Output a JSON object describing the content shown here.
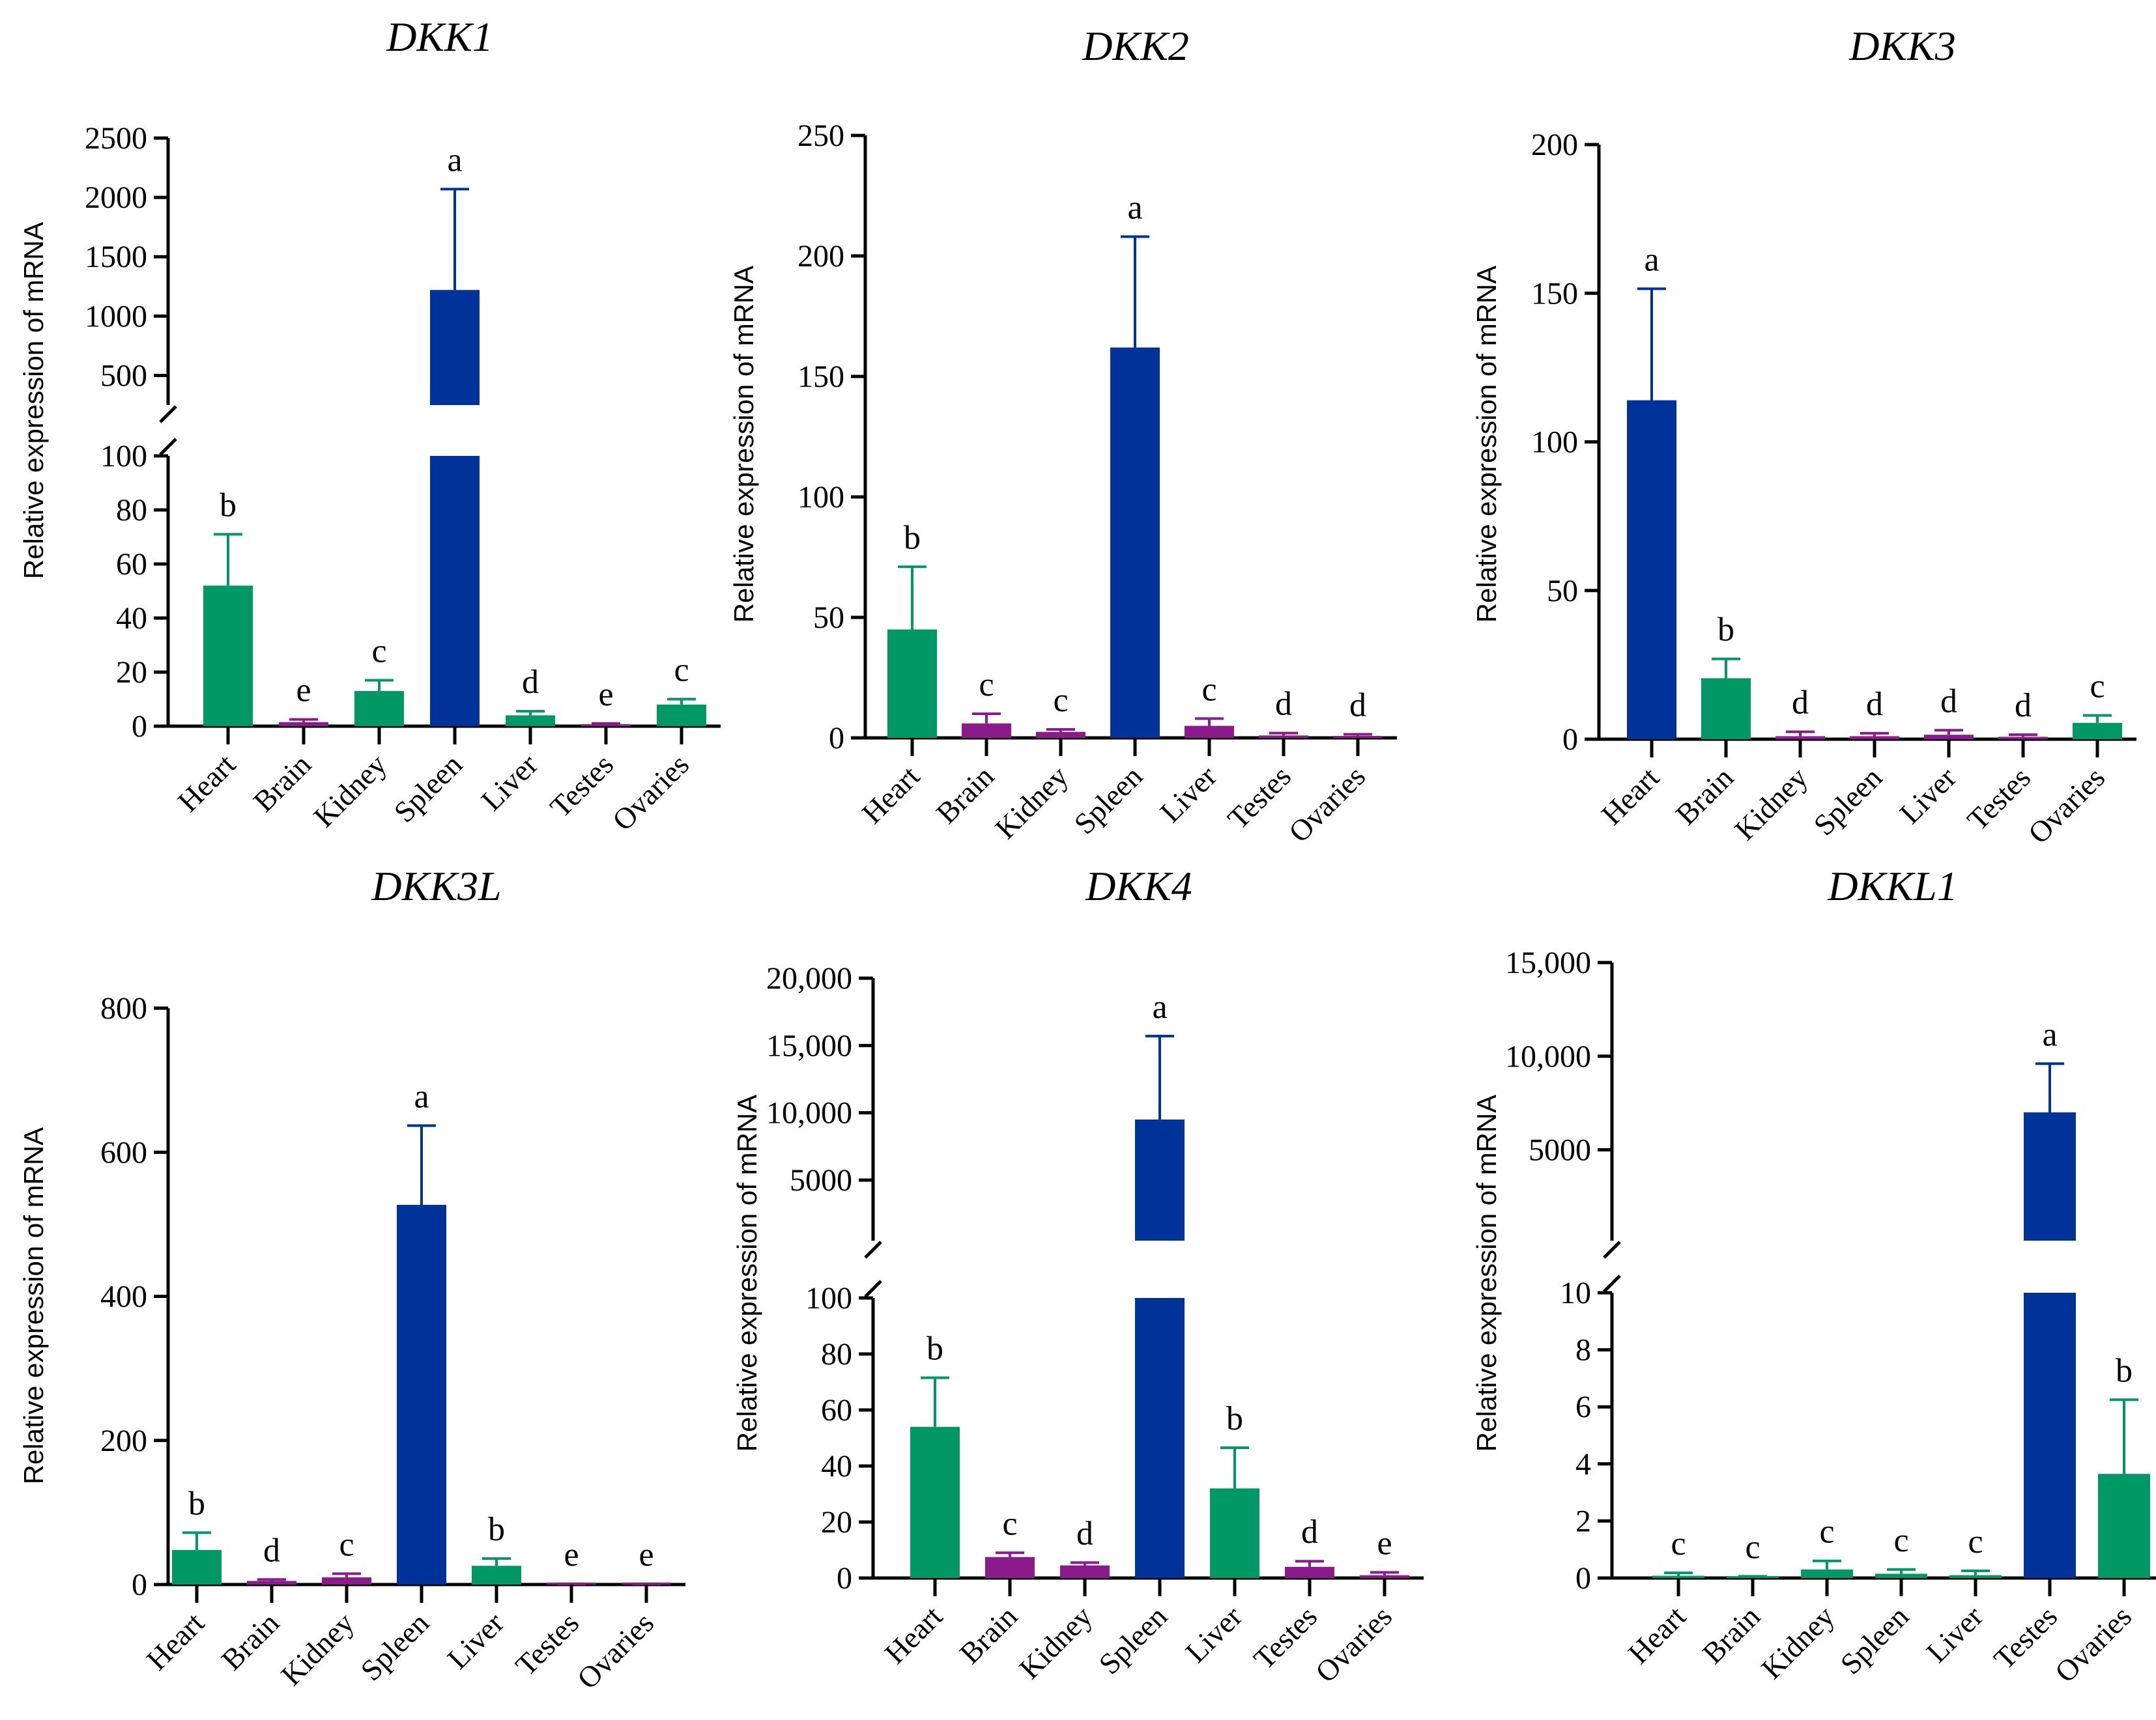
{
  "colors": {
    "blue": "#003399",
    "green": "#009966",
    "purple": "#8b1a8b",
    "axis": "#000000"
  },
  "chart_data": [
    {
      "type": "bar",
      "title": "DKK1",
      "ylabel": "Relative expression of mRNA",
      "categories": [
        "Heart",
        "Brain",
        "Kidney",
        "Spleen",
        "Liver",
        "Testes",
        "Ovaries"
      ],
      "values": [
        52,
        1.5,
        13,
        1220,
        4,
        0.5,
        8
      ],
      "errors": [
        19,
        1,
        4,
        850,
        1.5,
        0.5,
        2
      ],
      "significance": [
        "b",
        "e",
        "c",
        "a",
        "d",
        "e",
        "c"
      ],
      "colors": [
        "green",
        "purple",
        "green",
        "blue",
        "green",
        "purple",
        "green"
      ],
      "axis_break": true,
      "lower_ylim": [
        0,
        100
      ],
      "lower_ticks": [
        "0",
        "20",
        "40",
        "60",
        "80",
        "100"
      ],
      "upper_ylim": [
        250,
        2500
      ],
      "upper_ticks": [
        "500",
        "1000",
        "1500",
        "2000",
        "2500"
      ]
    },
    {
      "type": "bar",
      "title": "DKK2",
      "ylabel": "Relative expression of mRNA",
      "categories": [
        "Heart",
        "Brain",
        "Kidney",
        "Spleen",
        "Liver",
        "Testes",
        "Ovaries"
      ],
      "values": [
        45,
        6,
        2.5,
        162,
        5,
        1,
        0.5
      ],
      "errors": [
        26,
        4,
        1,
        46,
        3,
        1,
        1
      ],
      "significance": [
        "b",
        "c",
        "c",
        "a",
        "c",
        "d",
        "d"
      ],
      "colors": [
        "green",
        "purple",
        "purple",
        "blue",
        "purple",
        "purple",
        "purple"
      ],
      "axis_break": false,
      "ylim": [
        0,
        250
      ],
      "ticks": [
        "0",
        "50",
        "100",
        "150",
        "200",
        "250"
      ]
    },
    {
      "type": "bar",
      "title": "DKK3",
      "ylabel": "Relative expression of mRNA",
      "categories": [
        "Heart",
        "Brain",
        "Kidney",
        "Spleen",
        "Liver",
        "Testes",
        "Ovaries"
      ],
      "values": [
        114,
        20.5,
        1,
        1,
        1.5,
        0.8,
        5.5
      ],
      "errors": [
        37.5,
        6.5,
        1.5,
        1,
        1.5,
        0.7,
        2.5
      ],
      "significance": [
        "a",
        "b",
        "d",
        "d",
        "d",
        "d",
        "c"
      ],
      "colors": [
        "blue",
        "green",
        "purple",
        "purple",
        "purple",
        "purple",
        "green"
      ],
      "axis_break": false,
      "ylim": [
        0,
        200
      ],
      "ticks": [
        "0",
        "50",
        "100",
        "150",
        "200"
      ]
    },
    {
      "type": "bar",
      "title": "DKK3L",
      "ylabel": "Relative expression of mRNA",
      "categories": [
        "Heart",
        "Brain",
        "Kidney",
        "Spleen",
        "Liver",
        "Testes",
        "Ovaries"
      ],
      "values": [
        48,
        5,
        10,
        527,
        26,
        0.5,
        0.5
      ],
      "errors": [
        24,
        2,
        5,
        110,
        10,
        0.5,
        0.5
      ],
      "significance": [
        "b",
        "d",
        "c",
        "a",
        "b",
        "e",
        "e"
      ],
      "colors": [
        "green",
        "purple",
        "purple",
        "blue",
        "green",
        "purple",
        "purple"
      ],
      "axis_break": false,
      "ylim": [
        0,
        800
      ],
      "ticks": [
        "0",
        "200",
        "400",
        "600",
        "800"
      ]
    },
    {
      "type": "bar",
      "title": "DKK4",
      "ylabel": "Relative expression of mRNA",
      "categories": [
        "Heart",
        "Brain",
        "Kidney",
        "Spleen",
        "Liver",
        "Testes",
        "Ovaries"
      ],
      "values": [
        54,
        7.5,
        4.5,
        9500,
        32,
        4,
        1
      ],
      "errors": [
        17.5,
        1.5,
        1,
        6200,
        14.5,
        2,
        1
      ],
      "significance": [
        "b",
        "c",
        "d",
        "a",
        "b",
        "d",
        "e"
      ],
      "colors": [
        "green",
        "purple",
        "purple",
        "blue",
        "green",
        "purple",
        "purple"
      ],
      "axis_break": true,
      "lower_ylim": [
        0,
        100
      ],
      "lower_ticks": [
        "0",
        "20",
        "40",
        "60",
        "80",
        "100"
      ],
      "upper_ylim": [
        500,
        20000
      ],
      "upper_ticks": [
        "5000",
        "10,000",
        "15,000",
        "20,000"
      ]
    },
    {
      "type": "bar",
      "title": "DKKL1",
      "ylabel": "Relative expression of mRNA",
      "categories": [
        "Heart",
        "Brain",
        "Kidney",
        "Spleen",
        "Liver",
        "Testes",
        "Ovaries"
      ],
      "values": [
        0.08,
        0.03,
        0.3,
        0.15,
        0.1,
        7000,
        3.65
      ],
      "errors": [
        0.1,
        0.03,
        0.3,
        0.15,
        0.15,
        2600,
        2.6
      ],
      "significance": [
        "c",
        "c",
        "c",
        "c",
        "c",
        "a",
        "b"
      ],
      "colors": [
        "green",
        "green",
        "green",
        "green",
        "green",
        "blue",
        "green"
      ],
      "axis_break": true,
      "lower_ylim": [
        0,
        10
      ],
      "lower_ticks": [
        "0",
        "2",
        "4",
        "6",
        "8",
        "10"
      ],
      "upper_ylim": [
        150,
        15000
      ],
      "upper_ticks": [
        "5000",
        "10,000",
        "15,000"
      ]
    }
  ]
}
